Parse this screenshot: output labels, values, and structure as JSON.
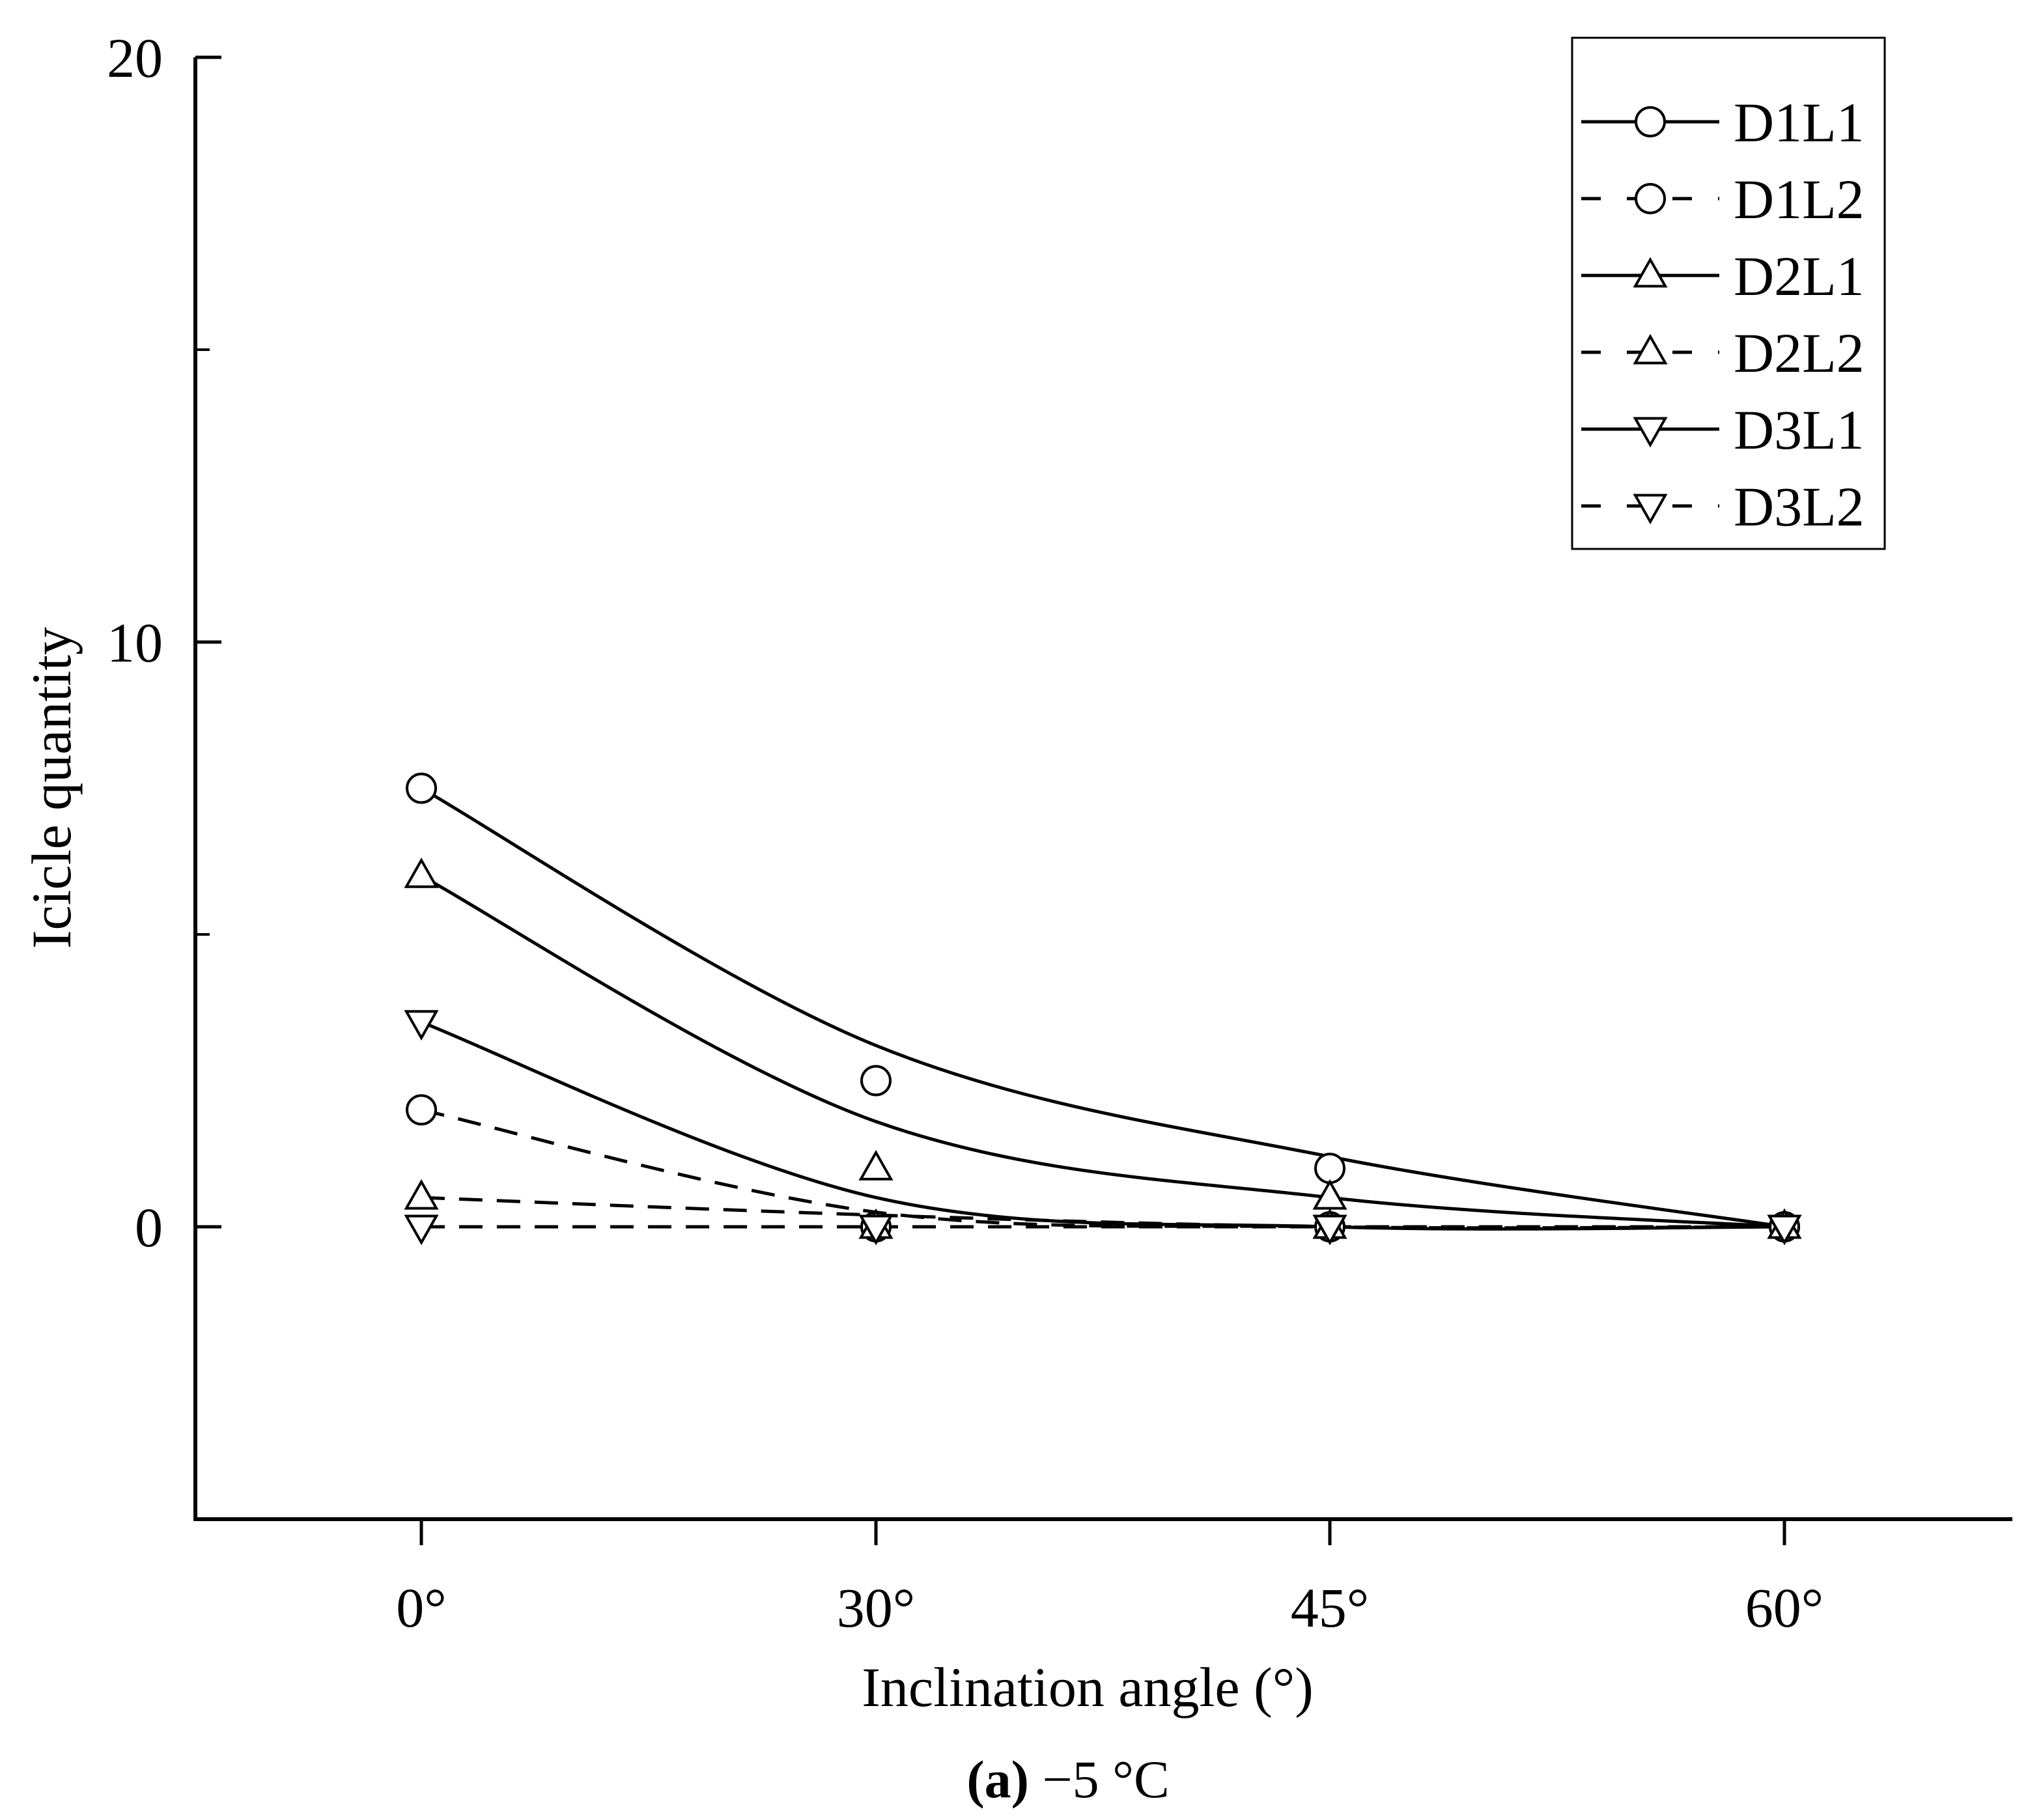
{
  "chart_data": {
    "type": "line",
    "caption_letter": "a",
    "caption_rest": " −5 °C",
    "xlabel": "Inclination angle (°)",
    "ylabel": "Icicle quantity",
    "categories": [
      "0°",
      "30°",
      "45°",
      "60°"
    ],
    "ylim": [
      -5,
      20
    ],
    "yticks_major": [
      0,
      10,
      20
    ],
    "yticks_minor": [
      5,
      15
    ],
    "ytick_labels": [
      "0",
      "10",
      "20"
    ],
    "grid": false,
    "legend_position": "top-right",
    "series": [
      {
        "name": "D1L1",
        "marker": "circle",
        "line": "solid",
        "values": [
          7.5,
          2.5,
          1,
          0
        ],
        "fit": [
          7.5,
          3.1,
          1.2,
          0
        ]
      },
      {
        "name": "D1L2",
        "marker": "circle",
        "line": "dashed",
        "values": [
          2,
          0,
          0,
          0
        ],
        "fit": [
          2,
          0.25,
          0,
          0
        ]
      },
      {
        "name": "D2L1",
        "marker": "triangle-up",
        "line": "solid",
        "values": [
          6,
          1,
          0.5,
          0
        ],
        "fit": [
          6,
          1.8,
          0.5,
          0
        ]
      },
      {
        "name": "D2L2",
        "marker": "triangle-up",
        "line": "dashed",
        "values": [
          0.5,
          0,
          0,
          0
        ],
        "fit": [
          0.5,
          0.2,
          0,
          0
        ]
      },
      {
        "name": "D3L1",
        "marker": "triangle-down",
        "line": "solid",
        "values": [
          3.5,
          0,
          0,
          0
        ],
        "fit": [
          3.5,
          0.5,
          0,
          0
        ]
      },
      {
        "name": "D3L2",
        "marker": "triangle-down",
        "line": "dashed",
        "values": [
          0,
          0,
          0,
          0
        ],
        "fit": [
          0,
          0,
          0,
          0
        ]
      }
    ]
  }
}
